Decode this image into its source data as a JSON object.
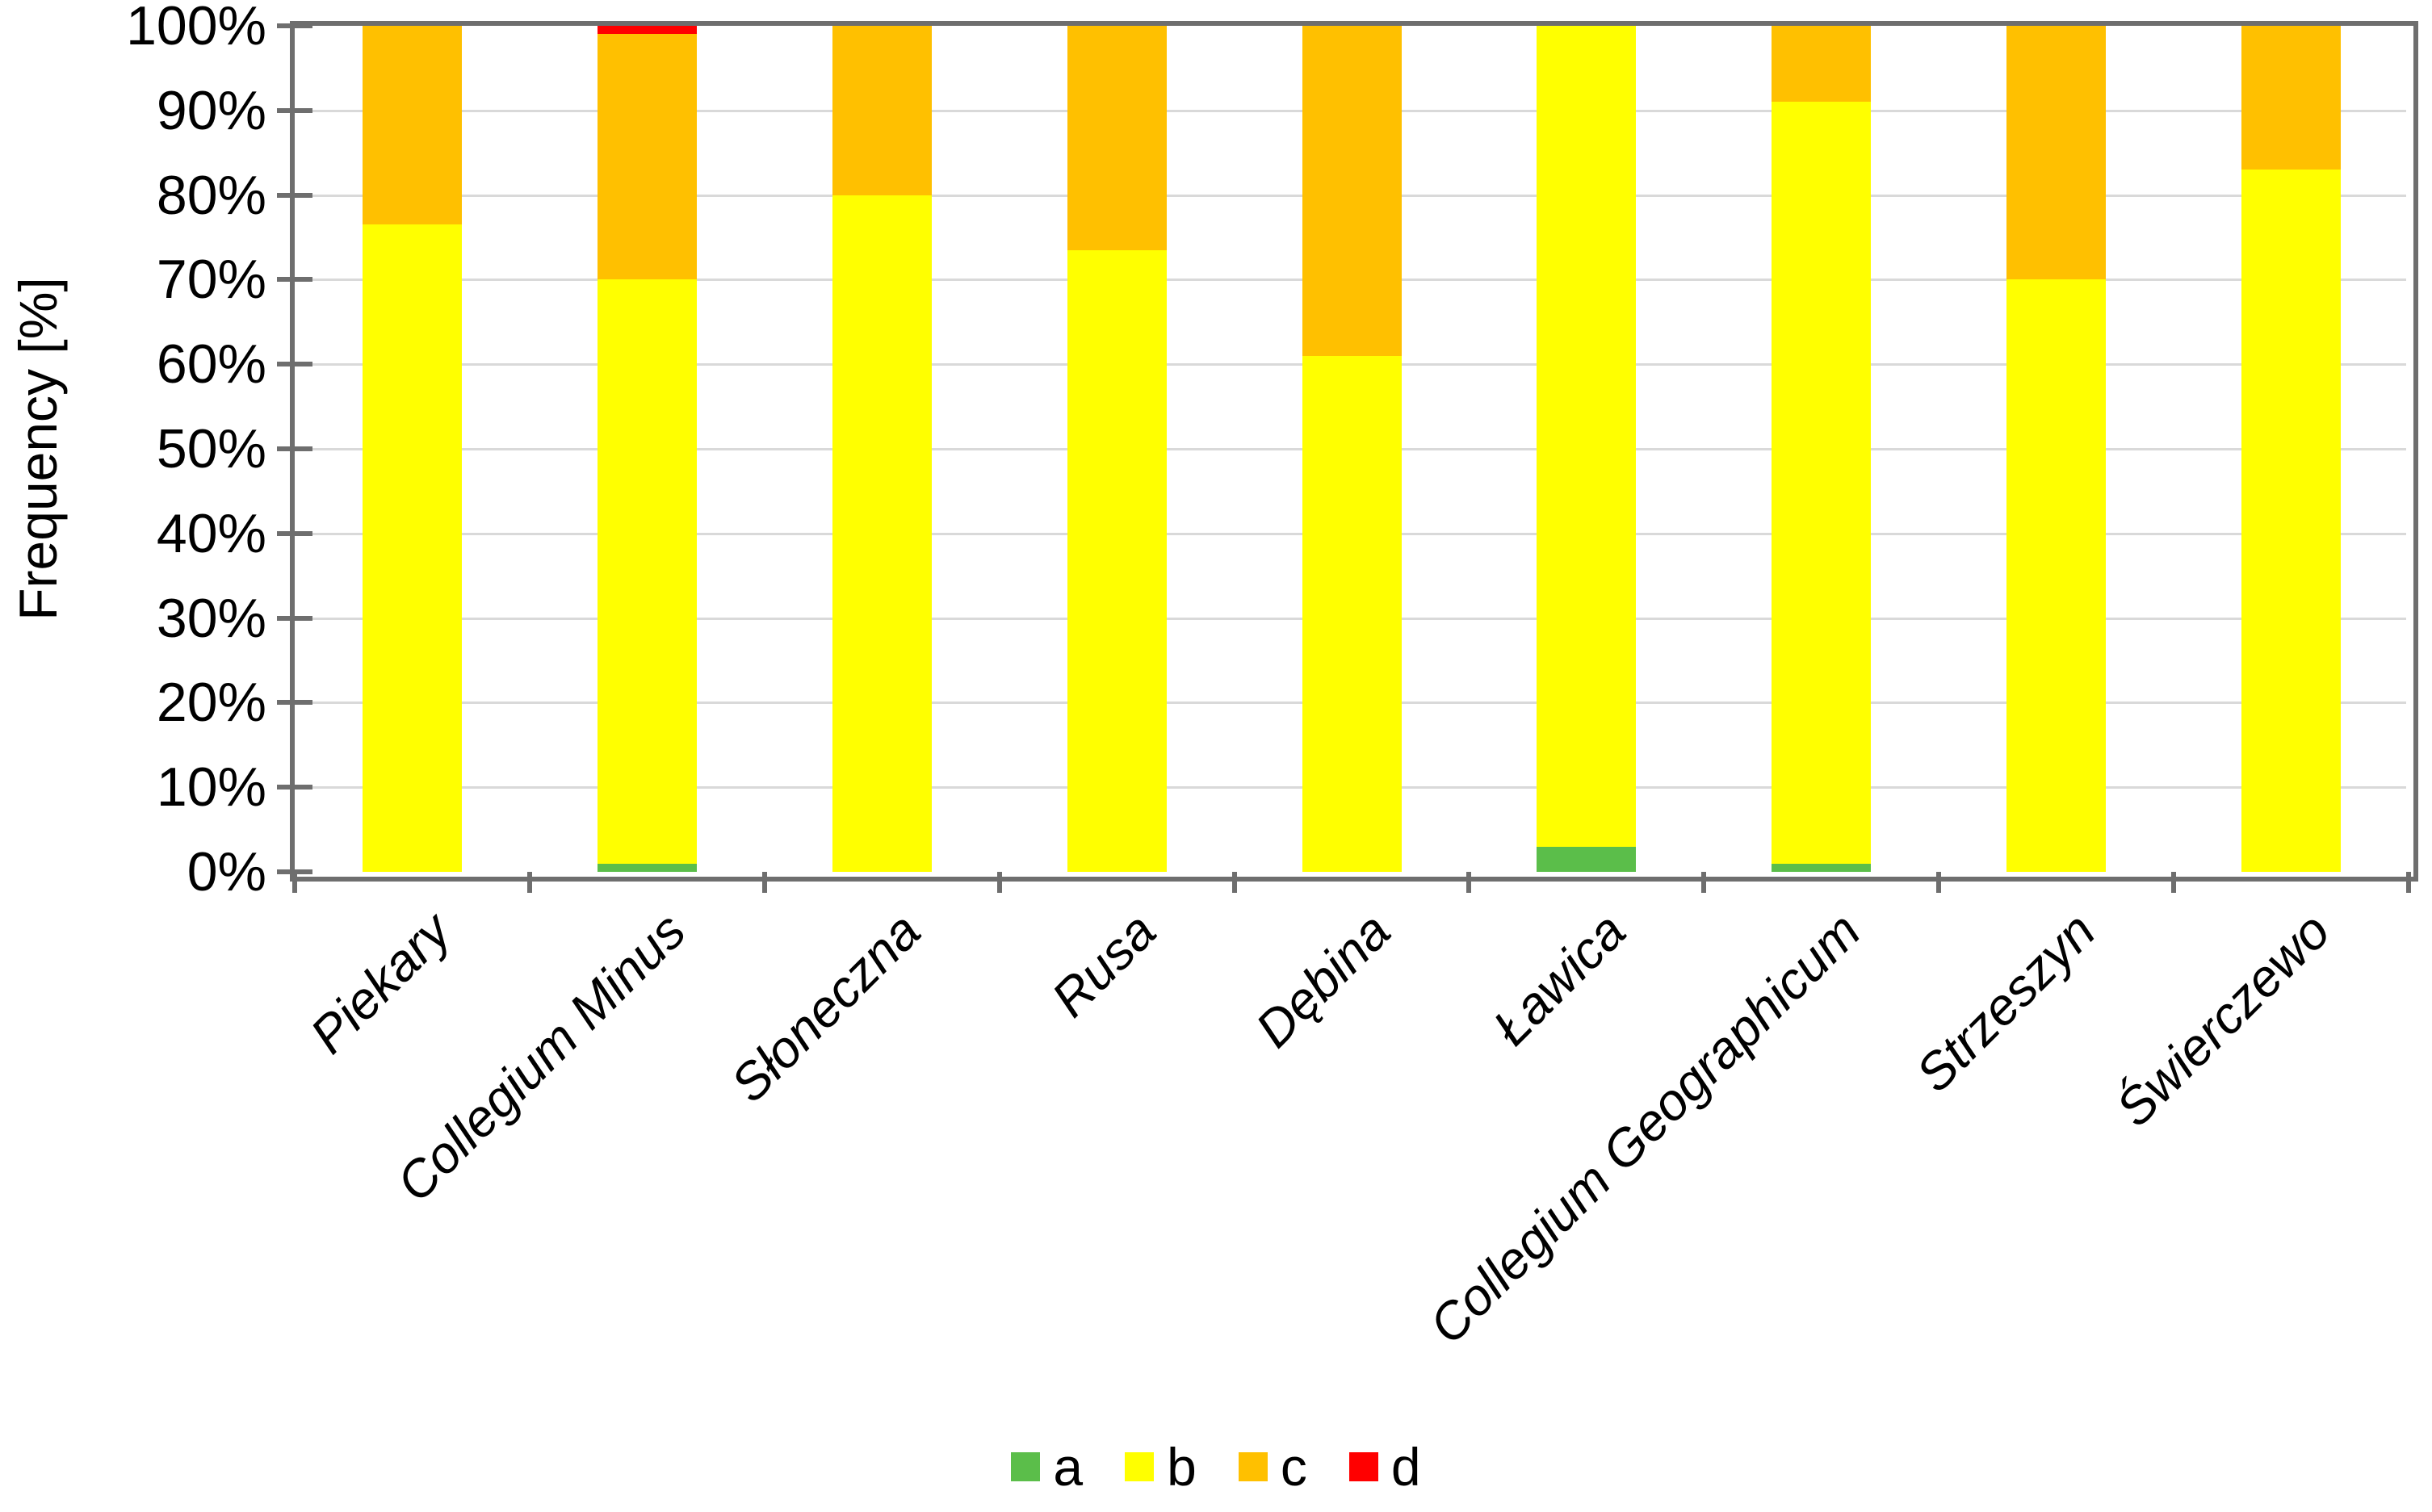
{
  "chart_data": {
    "type": "bar",
    "stacked": true,
    "stacking": "percent",
    "title": "",
    "xlabel": "",
    "ylabel": "Frequency [%]",
    "ylim": [
      0,
      100
    ],
    "ytick_step": 10,
    "ytick_labels": [
      "0%",
      "10%",
      "20%",
      "30%",
      "40%",
      "50%",
      "60%",
      "70%",
      "80%",
      "90%",
      "100%"
    ],
    "grid": "horizontal",
    "legend_position": "bottom",
    "categories": [
      "Piekary",
      "Collegium Minus",
      "Słoneczna",
      "Rusa",
      "Dębina",
      "Ławica",
      "Collegium Geographicum",
      "Strzeszyn",
      "Świerczewo"
    ],
    "series": [
      {
        "name": "a",
        "color": "#5BBE4A",
        "values": [
          0,
          1,
          0,
          0,
          0,
          3,
          1,
          0,
          0
        ]
      },
      {
        "name": "b",
        "color": "#FFFF00",
        "values": [
          76.5,
          69,
          80,
          73.5,
          61,
          97,
          90,
          70,
          83
        ]
      },
      {
        "name": "c",
        "color": "#FFC000",
        "values": [
          23.5,
          29,
          20,
          26.5,
          39,
          0,
          9,
          30,
          17
        ]
      },
      {
        "name": "d",
        "color": "#FF0000",
        "values": [
          0,
          1,
          0,
          0,
          0,
          0,
          0,
          0,
          0
        ]
      }
    ]
  },
  "colors": {
    "axis": "#6E6E6E",
    "gridline": "#D9D9D9",
    "text": "#000000"
  }
}
